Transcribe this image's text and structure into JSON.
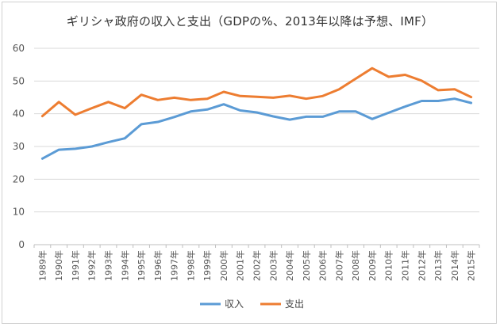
{
  "chart_data": {
    "type": "line",
    "title": "ギリシャ政府の収入と支出（GDPの%、2013年以降は予想、IMF）",
    "categories": [
      "1989年",
      "1990年",
      "1991年",
      "1992年",
      "1993年",
      "1994年",
      "1995年",
      "1996年",
      "1997年",
      "1998年",
      "1999年",
      "2000年",
      "2001年",
      "2002年",
      "2003年",
      "2004年",
      "2005年",
      "2006年",
      "2007年",
      "2008年",
      "2009年",
      "2010年",
      "2011年",
      "2012年",
      "2013年",
      "2014年",
      "2015年"
    ],
    "series": [
      {
        "name": "収入",
        "color": "#5b9bd5",
        "values": [
          26.3,
          29.0,
          29.3,
          30.0,
          31.3,
          32.5,
          36.8,
          37.5,
          39.0,
          40.7,
          41.3,
          42.9,
          41.0,
          40.4,
          39.2,
          38.2,
          39.1,
          39.1,
          40.7,
          40.7,
          38.4,
          40.3,
          42.2,
          43.9,
          43.9,
          44.6,
          43.3
        ]
      },
      {
        "name": "支出",
        "color": "#ed7d31",
        "values": [
          39.3,
          43.6,
          39.7,
          41.7,
          43.6,
          41.7,
          45.8,
          44.2,
          44.9,
          44.2,
          44.6,
          46.7,
          45.4,
          45.2,
          44.9,
          45.5,
          44.6,
          45.4,
          47.5,
          50.7,
          53.9,
          51.3,
          51.9,
          50.1,
          47.2,
          47.5,
          45.1
        ]
      }
    ],
    "ylim": [
      0,
      60
    ],
    "yticks": [
      0,
      10,
      20,
      30,
      40,
      50,
      60
    ],
    "grid": true,
    "legend_position": "bottom"
  }
}
